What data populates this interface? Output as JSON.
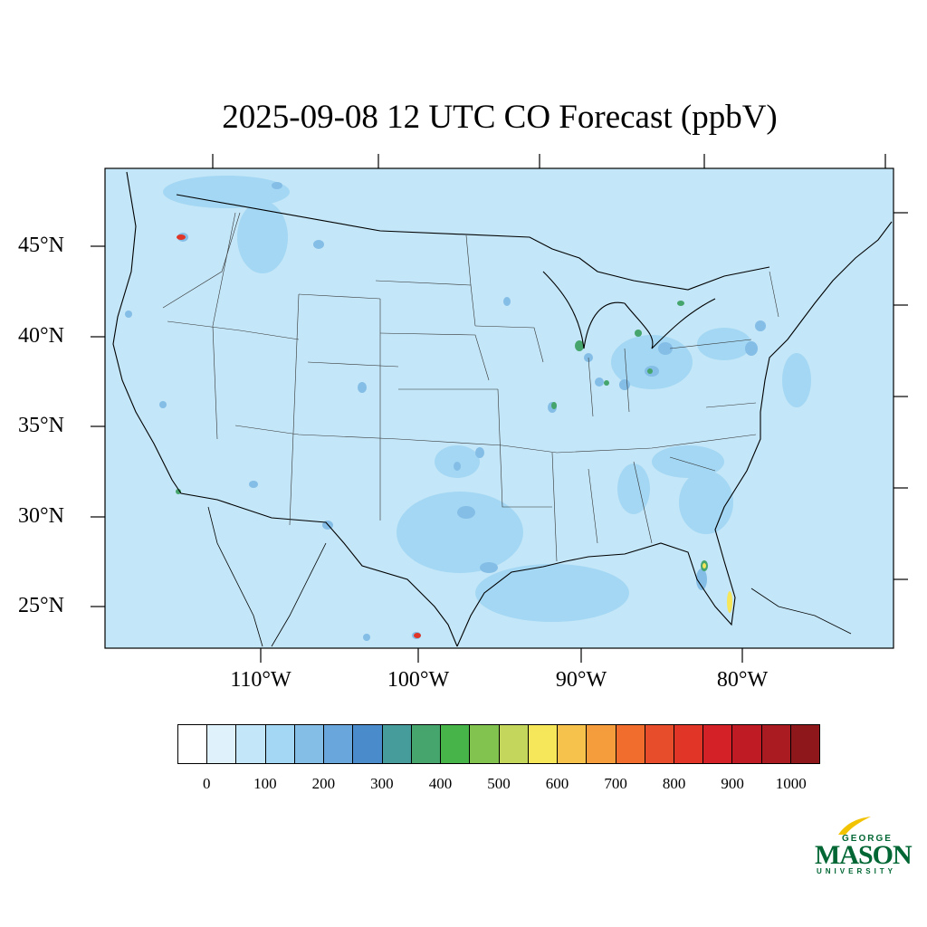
{
  "title": "2025-09-08 12 UTC CO Forecast (ppbV)",
  "lat_labels": [
    "45°N",
    "40°N",
    "35°N",
    "30°N",
    "25°N"
  ],
  "lon_labels": [
    "110°W",
    "100°W",
    "90°W",
    "80°W"
  ],
  "colorbar": {
    "colors": [
      "#ffffff",
      "#dff1fb",
      "#c3e6f8",
      "#a3d7f3",
      "#84bde6",
      "#68a6dc",
      "#4a8bcc",
      "#469b9b",
      "#45a56c",
      "#47b449",
      "#82c24e",
      "#c5d65c",
      "#f6e65a",
      "#f7c24c",
      "#f59c3c",
      "#f06d2e",
      "#e84d2b",
      "#e03527",
      "#d42127",
      "#bf1b24",
      "#a91a21",
      "#8e171b"
    ],
    "tick_labels": [
      "0",
      "100",
      "200",
      "300",
      "400",
      "500",
      "600",
      "700",
      "800",
      "900",
      "1000"
    ]
  },
  "logo": {
    "line1": "GEORGE",
    "line2": "MASON",
    "line3": "UNIVERSITY"
  }
}
